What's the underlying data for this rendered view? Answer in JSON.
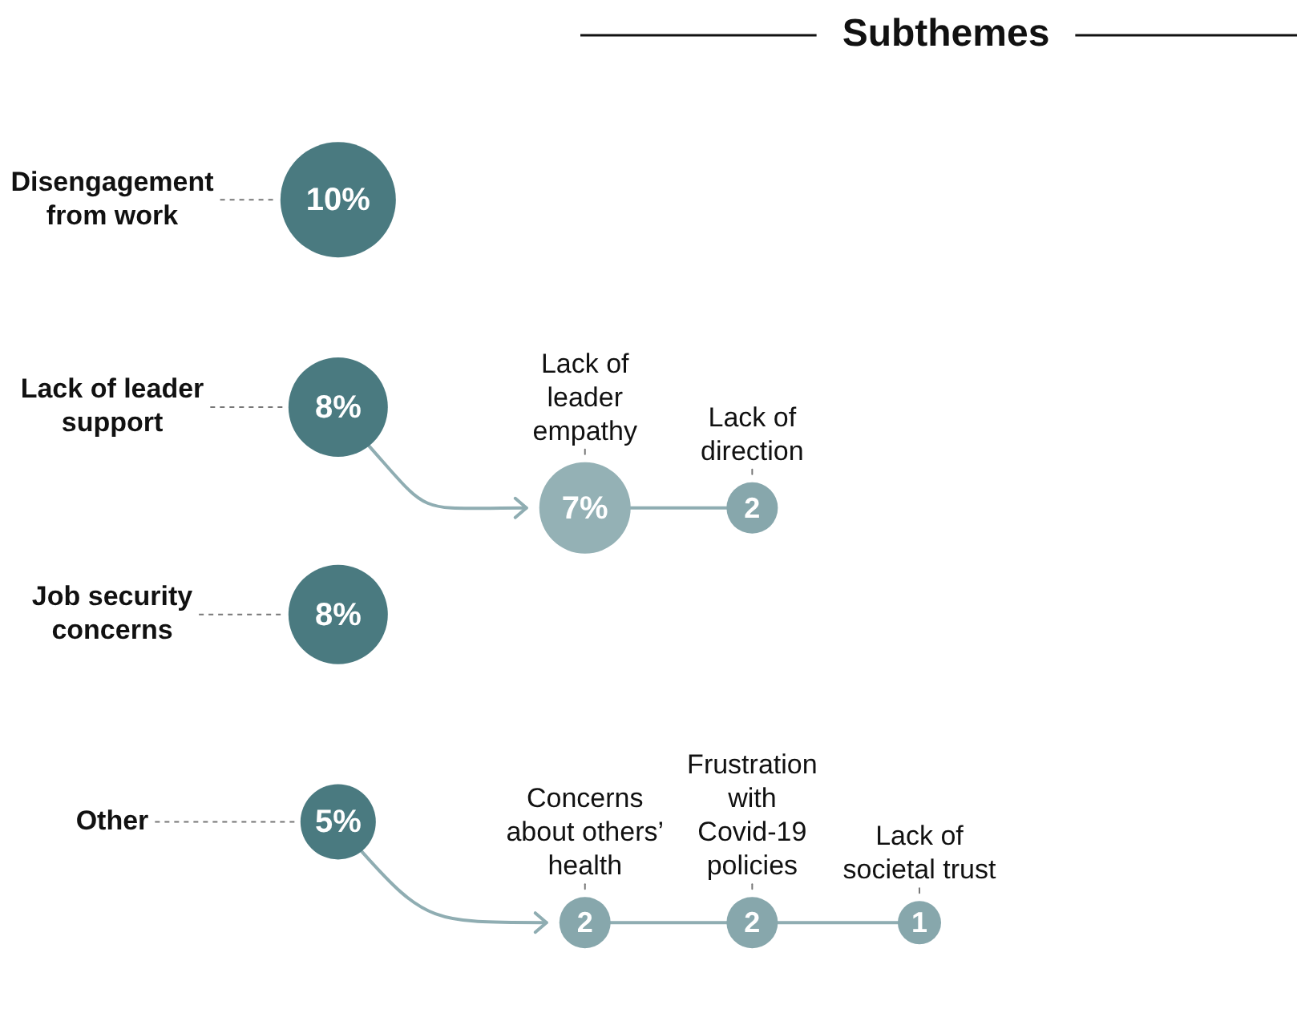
{
  "chart_data": {
    "type": "other",
    "title": "Subthemes",
    "categories": [
      "Disengagement from work",
      "Lack of leader support",
      "Job security concerns",
      "Other"
    ],
    "values": [
      10,
      8,
      8,
      5
    ],
    "value_labels": [
      "10%",
      "8%",
      "8%",
      "5%"
    ],
    "color": "#4a7a80",
    "series": [
      {
        "name": "Lack of leader empathy",
        "color": "#94b1b5",
        "values": [
          null,
          7,
          null,
          null
        ],
        "value_labels": [
          null,
          "7%",
          null,
          null
        ]
      },
      {
        "name": "Lack of direction",
        "color": "#87a7ac",
        "values": [
          null,
          2,
          null,
          null
        ],
        "value_labels": [
          null,
          "2",
          null,
          null
        ]
      },
      {
        "name": "Concerns about others’ health",
        "color": "#87a7ac",
        "values": [
          null,
          null,
          null,
          2
        ],
        "value_labels": [
          null,
          null,
          null,
          "2"
        ]
      },
      {
        "name": "Frustration with Covid-19 policies",
        "color": "#87a7ac",
        "values": [
          null,
          null,
          null,
          2
        ],
        "value_labels": [
          null,
          null,
          null,
          "2"
        ]
      },
      {
        "name": "Lack of societal trust",
        "color": "#87a7ac",
        "values": [
          null,
          null,
          null,
          1
        ],
        "value_labels": [
          null,
          null,
          null,
          "1"
        ]
      }
    ]
  }
}
